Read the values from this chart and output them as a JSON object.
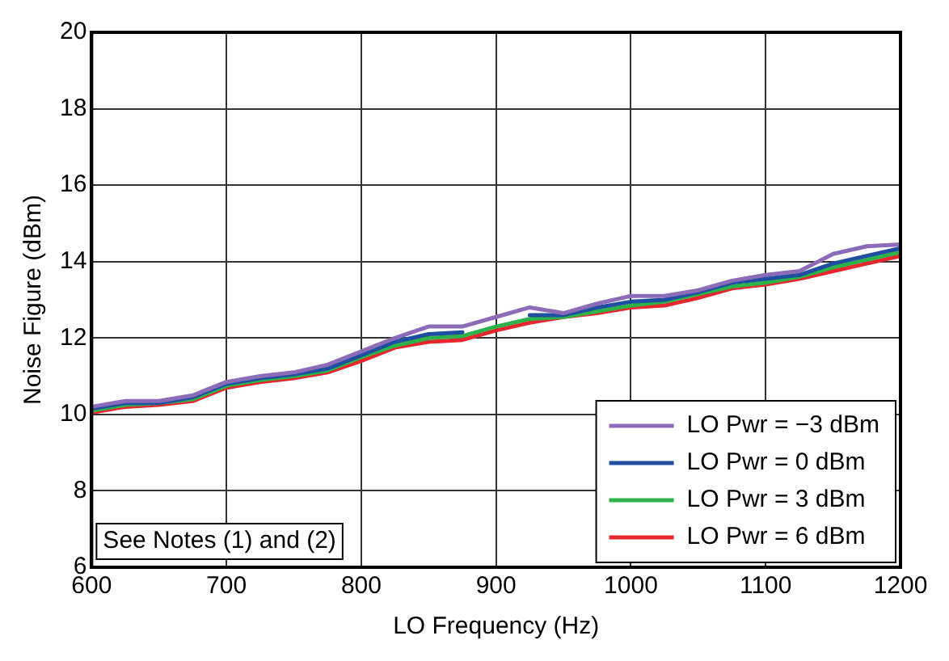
{
  "chart_data": {
    "type": "line",
    "xlabel": "LO Frequency (Hz)",
    "ylabel": "Noise Figure (dBm)",
    "x": [
      600,
      625,
      650,
      675,
      700,
      725,
      750,
      775,
      800,
      825,
      850,
      875,
      900,
      925,
      950,
      975,
      1000,
      1025,
      1050,
      1075,
      1100,
      1125,
      1150,
      1175,
      1200
    ],
    "series": [
      {
        "name": "LO Pwr = −3 dBm",
        "color": "#8c6bb8",
        "values": [
          10.2,
          10.35,
          10.35,
          10.5,
          10.85,
          11.0,
          11.1,
          11.3,
          11.65,
          12.0,
          12.3,
          12.3,
          12.55,
          12.8,
          12.65,
          12.9,
          13.1,
          13.1,
          13.25,
          13.5,
          13.65,
          13.75,
          14.2,
          14.4,
          14.45
        ]
      },
      {
        "name": "LO Pwr = 0 dBm",
        "color": "#1f4fa0",
        "values": [
          10.15,
          10.3,
          10.3,
          10.45,
          10.8,
          10.95,
          11.05,
          11.2,
          11.55,
          11.9,
          12.1,
          12.15,
          null,
          12.6,
          12.6,
          12.8,
          12.95,
          13.0,
          13.2,
          13.45,
          13.55,
          13.65,
          13.95,
          14.15,
          14.35
        ]
      },
      {
        "name": "LO Pwr = 3 dBm",
        "color": "#2db34a",
        "values": [
          10.1,
          10.25,
          10.3,
          10.4,
          10.75,
          10.9,
          11.0,
          11.15,
          11.5,
          11.8,
          12.0,
          12.05,
          12.3,
          12.5,
          12.55,
          12.7,
          12.85,
          12.95,
          13.15,
          13.35,
          13.45,
          13.6,
          13.85,
          14.05,
          14.25
        ]
      },
      {
        "name": "LO Pwr = 6 dBm",
        "color": "#e8262d",
        "values": [
          10.05,
          10.2,
          10.25,
          10.35,
          10.7,
          10.85,
          10.95,
          11.1,
          11.4,
          11.75,
          11.9,
          11.95,
          12.2,
          12.4,
          12.55,
          12.65,
          12.8,
          12.85,
          13.05,
          13.3,
          13.4,
          13.55,
          13.75,
          13.95,
          14.15
        ]
      }
    ],
    "xlim": [
      600,
      1200
    ],
    "xticks": [
      600,
      700,
      800,
      900,
      1000,
      1100,
      1200
    ],
    "ylim": [
      6,
      20
    ],
    "yticks": [
      6,
      8,
      10,
      12,
      14,
      16,
      18,
      20
    ],
    "grid": true,
    "legend": "bottom right",
    "marker": "none",
    "line_style": "solid",
    "annotations": [
      "See Notes (1) and (2)"
    ]
  }
}
